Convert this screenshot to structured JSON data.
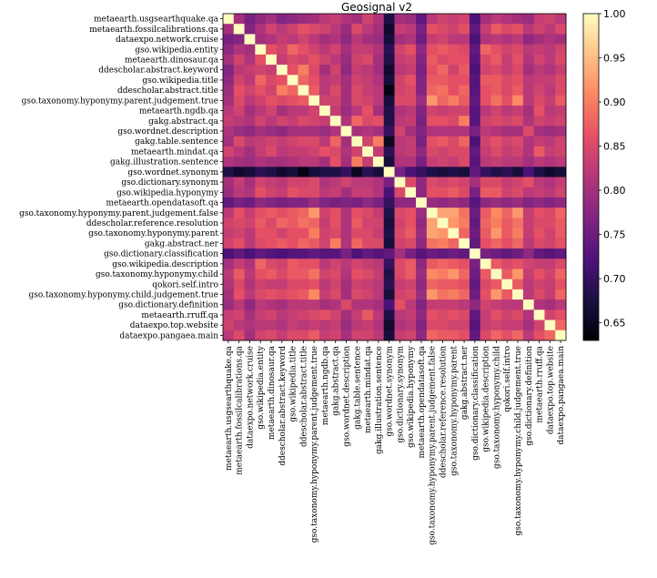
{
  "chart_data": {
    "type": "heatmap",
    "title": "Geosignal v2",
    "labels": [
      "metaearth.usgsearthquake.qa",
      "metaearth.fossilcalibrations.qa",
      "dataexpo.network.cruise",
      "gso.wikipedia.entity",
      "metaearth.dinosaur.qa",
      "ddescholar.abstract.keyword",
      "gso.wikipedia.title",
      "ddescholar.abstract.title",
      "gso.taxonomy.hyponymy.parent.judgement.true",
      "metaearth.ngdb.qa",
      "gakg.abstract.qa",
      "gso.wordnet.description",
      "gakg.table.sentence",
      "metaearth.mindat.qa",
      "gakg.illustration.sentence",
      "gso.wordnet.synonym",
      "gso.dictionary.synonym",
      "gso.wikipedia.hyponymy",
      "metaearth.opendatasoft.qa",
      "gso.taxonomy.hyponymy.parent.judgement.false",
      "ddescholar.reference.resolution",
      "gso.taxonomy.hyponymy.parent",
      "gakg.abstract.ner",
      "gso.dictionary.classification",
      "gso.wikipedia.description",
      "gso.taxonomy.hyponymy.child",
      "qokori.self.intro",
      "gso.taxonomy.hyponymy.child.judgement.true",
      "gso.dictionary.definition",
      "metaearth.rruff.qa",
      "dataexpo.top.website",
      "dataexpo.pangaea.main"
    ],
    "matrix": [
      [
        1.0,
        0.8,
        0.76,
        0.78,
        0.8,
        0.77,
        0.78,
        0.79,
        0.8,
        0.82,
        0.83,
        0.81,
        0.8,
        0.84,
        0.81,
        0.68,
        0.8,
        0.79,
        0.74,
        0.82,
        0.84,
        0.83,
        0.84,
        0.72,
        0.8,
        0.82,
        0.81,
        0.8,
        0.79,
        0.83,
        0.84,
        0.82
      ],
      [
        0.8,
        1.0,
        0.77,
        0.81,
        0.84,
        0.82,
        0.84,
        0.86,
        0.85,
        0.84,
        0.82,
        0.79,
        0.85,
        0.82,
        0.8,
        0.66,
        0.83,
        0.82,
        0.76,
        0.86,
        0.85,
        0.84,
        0.86,
        0.74,
        0.83,
        0.87,
        0.85,
        0.86,
        0.82,
        0.84,
        0.82,
        0.85
      ],
      [
        0.76,
        0.77,
        1.0,
        0.8,
        0.81,
        0.83,
        0.82,
        0.84,
        0.82,
        0.8,
        0.81,
        0.78,
        0.82,
        0.8,
        0.79,
        0.67,
        0.8,
        0.81,
        0.75,
        0.83,
        0.84,
        0.82,
        0.82,
        0.72,
        0.81,
        0.82,
        0.81,
        0.82,
        0.78,
        0.8,
        0.81,
        0.8
      ],
      [
        0.78,
        0.81,
        0.8,
        1.0,
        0.86,
        0.84,
        0.88,
        0.86,
        0.84,
        0.82,
        0.84,
        0.8,
        0.83,
        0.83,
        0.81,
        0.69,
        0.84,
        0.86,
        0.78,
        0.86,
        0.87,
        0.86,
        0.85,
        0.74,
        0.88,
        0.86,
        0.84,
        0.85,
        0.82,
        0.83,
        0.82,
        0.84
      ],
      [
        0.8,
        0.84,
        0.81,
        0.86,
        1.0,
        0.83,
        0.85,
        0.84,
        0.86,
        0.84,
        0.82,
        0.79,
        0.84,
        0.85,
        0.8,
        0.68,
        0.83,
        0.84,
        0.77,
        0.87,
        0.85,
        0.86,
        0.86,
        0.73,
        0.85,
        0.87,
        0.83,
        0.86,
        0.81,
        0.84,
        0.82,
        0.85
      ],
      [
        0.77,
        0.82,
        0.83,
        0.84,
        0.83,
        1.0,
        0.86,
        0.9,
        0.85,
        0.8,
        0.84,
        0.78,
        0.83,
        0.82,
        0.8,
        0.66,
        0.82,
        0.83,
        0.76,
        0.86,
        0.88,
        0.84,
        0.87,
        0.72,
        0.84,
        0.85,
        0.83,
        0.85,
        0.8,
        0.82,
        0.81,
        0.83
      ],
      [
        0.78,
        0.84,
        0.82,
        0.88,
        0.85,
        0.86,
        1.0,
        0.88,
        0.86,
        0.82,
        0.83,
        0.8,
        0.84,
        0.83,
        0.81,
        0.67,
        0.84,
        0.86,
        0.77,
        0.87,
        0.87,
        0.86,
        0.86,
        0.73,
        0.87,
        0.87,
        0.85,
        0.86,
        0.82,
        0.83,
        0.83,
        0.85
      ],
      [
        0.79,
        0.86,
        0.84,
        0.86,
        0.84,
        0.9,
        0.88,
        1.0,
        0.87,
        0.82,
        0.85,
        0.8,
        0.85,
        0.83,
        0.82,
        0.64,
        0.84,
        0.85,
        0.77,
        0.88,
        0.89,
        0.86,
        0.88,
        0.73,
        0.86,
        0.87,
        0.85,
        0.87,
        0.82,
        0.84,
        0.82,
        0.85
      ],
      [
        0.8,
        0.85,
        0.82,
        0.84,
        0.86,
        0.85,
        0.86,
        0.87,
        1.0,
        0.84,
        0.84,
        0.8,
        0.85,
        0.84,
        0.82,
        0.67,
        0.85,
        0.85,
        0.79,
        0.92,
        0.88,
        0.9,
        0.87,
        0.74,
        0.86,
        0.89,
        0.86,
        0.91,
        0.82,
        0.85,
        0.83,
        0.87
      ],
      [
        0.82,
        0.84,
        0.8,
        0.82,
        0.84,
        0.8,
        0.82,
        0.82,
        0.84,
        1.0,
        0.83,
        0.79,
        0.82,
        0.86,
        0.8,
        0.68,
        0.81,
        0.82,
        0.77,
        0.84,
        0.83,
        0.84,
        0.84,
        0.73,
        0.82,
        0.84,
        0.82,
        0.83,
        0.8,
        0.86,
        0.82,
        0.83
      ],
      [
        0.83,
        0.82,
        0.81,
        0.84,
        0.82,
        0.84,
        0.83,
        0.85,
        0.84,
        0.83,
        1.0,
        0.81,
        0.88,
        0.85,
        0.86,
        0.68,
        0.82,
        0.83,
        0.76,
        0.86,
        0.86,
        0.85,
        0.9,
        0.73,
        0.84,
        0.85,
        0.84,
        0.85,
        0.81,
        0.84,
        0.83,
        0.84
      ],
      [
        0.81,
        0.79,
        0.78,
        0.8,
        0.79,
        0.78,
        0.8,
        0.8,
        0.8,
        0.79,
        0.81,
        1.0,
        0.8,
        0.81,
        0.8,
        0.7,
        0.84,
        0.8,
        0.77,
        0.81,
        0.81,
        0.81,
        0.81,
        0.76,
        0.82,
        0.81,
        0.8,
        0.8,
        0.85,
        0.8,
        0.79,
        0.8
      ],
      [
        0.8,
        0.85,
        0.82,
        0.83,
        0.84,
        0.83,
        0.84,
        0.85,
        0.85,
        0.82,
        0.88,
        0.8,
        1.0,
        0.84,
        0.9,
        0.65,
        0.82,
        0.83,
        0.76,
        0.86,
        0.87,
        0.85,
        0.88,
        0.72,
        0.84,
        0.86,
        0.84,
        0.85,
        0.81,
        0.83,
        0.82,
        0.84
      ],
      [
        0.84,
        0.82,
        0.8,
        0.83,
        0.85,
        0.82,
        0.83,
        0.83,
        0.84,
        0.86,
        0.85,
        0.81,
        0.84,
        1.0,
        0.83,
        0.69,
        0.82,
        0.83,
        0.78,
        0.85,
        0.84,
        0.85,
        0.85,
        0.74,
        0.83,
        0.85,
        0.83,
        0.84,
        0.81,
        0.87,
        0.83,
        0.84
      ],
      [
        0.81,
        0.8,
        0.79,
        0.81,
        0.8,
        0.8,
        0.81,
        0.82,
        0.82,
        0.8,
        0.86,
        0.8,
        0.9,
        0.83,
        1.0,
        0.67,
        0.81,
        0.81,
        0.76,
        0.83,
        0.84,
        0.83,
        0.85,
        0.73,
        0.82,
        0.83,
        0.82,
        0.82,
        0.8,
        0.82,
        0.81,
        0.82
      ],
      [
        0.68,
        0.66,
        0.67,
        0.69,
        0.68,
        0.66,
        0.67,
        0.64,
        0.67,
        0.68,
        0.68,
        0.7,
        0.65,
        0.69,
        0.67,
        1.0,
        0.76,
        0.72,
        0.7,
        0.68,
        0.67,
        0.68,
        0.67,
        0.74,
        0.7,
        0.68,
        0.69,
        0.67,
        0.72,
        0.68,
        0.66,
        0.67
      ],
      [
        0.8,
        0.83,
        0.8,
        0.84,
        0.83,
        0.82,
        0.84,
        0.84,
        0.85,
        0.81,
        0.82,
        0.84,
        0.82,
        0.82,
        0.81,
        0.76,
        1.0,
        0.85,
        0.78,
        0.85,
        0.84,
        0.85,
        0.84,
        0.8,
        0.85,
        0.85,
        0.83,
        0.84,
        0.86,
        0.82,
        0.81,
        0.83
      ],
      [
        0.79,
        0.82,
        0.81,
        0.86,
        0.84,
        0.83,
        0.86,
        0.85,
        0.85,
        0.82,
        0.83,
        0.8,
        0.83,
        0.83,
        0.81,
        0.72,
        0.85,
        1.0,
        0.78,
        0.86,
        0.86,
        0.87,
        0.85,
        0.76,
        0.87,
        0.87,
        0.84,
        0.85,
        0.82,
        0.83,
        0.82,
        0.84
      ],
      [
        0.74,
        0.76,
        0.75,
        0.78,
        0.77,
        0.76,
        0.77,
        0.77,
        0.79,
        0.77,
        0.76,
        0.77,
        0.76,
        0.78,
        0.76,
        0.7,
        0.78,
        0.78,
        1.0,
        0.79,
        0.78,
        0.79,
        0.78,
        0.73,
        0.78,
        0.79,
        0.78,
        0.79,
        0.77,
        0.78,
        0.77,
        0.78
      ],
      [
        0.82,
        0.86,
        0.83,
        0.86,
        0.87,
        0.86,
        0.87,
        0.88,
        0.92,
        0.84,
        0.86,
        0.81,
        0.86,
        0.85,
        0.83,
        0.68,
        0.85,
        0.86,
        0.79,
        1.0,
        0.93,
        0.93,
        0.89,
        0.75,
        0.87,
        0.91,
        0.88,
        0.92,
        0.83,
        0.86,
        0.85,
        0.88
      ],
      [
        0.84,
        0.85,
        0.84,
        0.87,
        0.85,
        0.88,
        0.87,
        0.89,
        0.88,
        0.83,
        0.86,
        0.81,
        0.87,
        0.84,
        0.84,
        0.67,
        0.84,
        0.86,
        0.78,
        0.93,
        1.0,
        0.92,
        0.9,
        0.74,
        0.88,
        0.9,
        0.87,
        0.89,
        0.83,
        0.85,
        0.85,
        0.87
      ],
      [
        0.83,
        0.84,
        0.82,
        0.86,
        0.86,
        0.84,
        0.86,
        0.86,
        0.9,
        0.84,
        0.85,
        0.81,
        0.85,
        0.85,
        0.83,
        0.68,
        0.85,
        0.87,
        0.79,
        0.93,
        0.92,
        1.0,
        0.88,
        0.75,
        0.87,
        0.92,
        0.87,
        0.9,
        0.83,
        0.86,
        0.84,
        0.87
      ],
      [
        0.84,
        0.86,
        0.82,
        0.85,
        0.86,
        0.87,
        0.86,
        0.88,
        0.87,
        0.84,
        0.9,
        0.81,
        0.88,
        0.85,
        0.85,
        0.67,
        0.84,
        0.85,
        0.78,
        0.89,
        0.9,
        0.88,
        1.0,
        0.74,
        0.86,
        0.88,
        0.86,
        0.88,
        0.82,
        0.85,
        0.84,
        0.86
      ],
      [
        0.72,
        0.74,
        0.72,
        0.74,
        0.73,
        0.72,
        0.73,
        0.73,
        0.74,
        0.73,
        0.73,
        0.76,
        0.72,
        0.74,
        0.73,
        0.74,
        0.8,
        0.76,
        0.73,
        0.75,
        0.74,
        0.75,
        0.74,
        1.0,
        0.76,
        0.75,
        0.74,
        0.75,
        0.78,
        0.74,
        0.73,
        0.74
      ],
      [
        0.8,
        0.83,
        0.81,
        0.88,
        0.85,
        0.84,
        0.87,
        0.86,
        0.86,
        0.82,
        0.84,
        0.82,
        0.84,
        0.83,
        0.82,
        0.7,
        0.85,
        0.87,
        0.78,
        0.87,
        0.88,
        0.87,
        0.86,
        0.76,
        1.0,
        0.87,
        0.85,
        0.86,
        0.84,
        0.83,
        0.83,
        0.85
      ],
      [
        0.82,
        0.87,
        0.82,
        0.86,
        0.87,
        0.85,
        0.87,
        0.87,
        0.89,
        0.84,
        0.85,
        0.81,
        0.86,
        0.85,
        0.83,
        0.68,
        0.85,
        0.87,
        0.79,
        0.91,
        0.9,
        0.92,
        0.88,
        0.75,
        0.87,
        1.0,
        0.87,
        0.92,
        0.83,
        0.86,
        0.84,
        0.88
      ],
      [
        0.81,
        0.85,
        0.81,
        0.84,
        0.83,
        0.83,
        0.85,
        0.85,
        0.86,
        0.82,
        0.84,
        0.8,
        0.84,
        0.83,
        0.82,
        0.69,
        0.83,
        0.84,
        0.78,
        0.88,
        0.87,
        0.87,
        0.86,
        0.74,
        0.85,
        0.87,
        1.0,
        0.87,
        0.82,
        0.84,
        0.83,
        0.86
      ],
      [
        0.8,
        0.86,
        0.82,
        0.85,
        0.86,
        0.85,
        0.86,
        0.87,
        0.91,
        0.83,
        0.85,
        0.8,
        0.85,
        0.84,
        0.82,
        0.67,
        0.84,
        0.85,
        0.79,
        0.92,
        0.89,
        0.9,
        0.88,
        0.75,
        0.86,
        0.92,
        0.87,
        1.0,
        0.82,
        0.85,
        0.83,
        0.88
      ],
      [
        0.79,
        0.82,
        0.78,
        0.82,
        0.81,
        0.8,
        0.82,
        0.82,
        0.82,
        0.8,
        0.81,
        0.85,
        0.81,
        0.81,
        0.8,
        0.72,
        0.86,
        0.82,
        0.77,
        0.83,
        0.83,
        0.83,
        0.82,
        0.78,
        0.84,
        0.83,
        0.82,
        0.82,
        1.0,
        0.81,
        0.8,
        0.82
      ],
      [
        0.83,
        0.84,
        0.8,
        0.83,
        0.84,
        0.82,
        0.83,
        0.84,
        0.85,
        0.86,
        0.84,
        0.8,
        0.83,
        0.87,
        0.82,
        0.68,
        0.82,
        0.83,
        0.78,
        0.86,
        0.85,
        0.86,
        0.85,
        0.74,
        0.83,
        0.86,
        0.84,
        0.85,
        0.81,
        1.0,
        0.84,
        0.86
      ],
      [
        0.84,
        0.82,
        0.81,
        0.82,
        0.82,
        0.81,
        0.83,
        0.82,
        0.83,
        0.82,
        0.83,
        0.79,
        0.82,
        0.83,
        0.81,
        0.66,
        0.81,
        0.82,
        0.77,
        0.85,
        0.85,
        0.84,
        0.84,
        0.73,
        0.83,
        0.84,
        0.83,
        0.83,
        0.8,
        0.84,
        1.0,
        0.88
      ],
      [
        0.82,
        0.85,
        0.8,
        0.84,
        0.85,
        0.83,
        0.85,
        0.85,
        0.87,
        0.83,
        0.84,
        0.8,
        0.84,
        0.84,
        0.82,
        0.67,
        0.83,
        0.84,
        0.78,
        0.88,
        0.87,
        0.87,
        0.86,
        0.74,
        0.85,
        0.88,
        0.86,
        0.88,
        0.82,
        0.86,
        0.88,
        1.0
      ]
    ],
    "colorbar": {
      "colormap": "magma",
      "vmin": 0.63,
      "vmax": 1.0,
      "ticks": [
        "0.65",
        "0.70",
        "0.75",
        "0.80",
        "0.85",
        "0.90",
        "0.95",
        "1.00"
      ]
    }
  }
}
